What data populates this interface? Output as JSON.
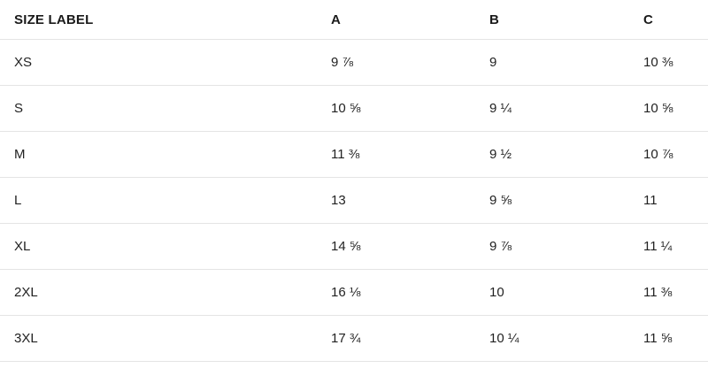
{
  "table": {
    "headers": [
      "SIZE LABEL",
      "A",
      "B",
      "C"
    ],
    "rows": [
      {
        "size": "XS",
        "a": "9 ⅞",
        "b": "9",
        "c": "10 ⅜"
      },
      {
        "size": "S",
        "a": "10 ⅝",
        "b": "9 ¼",
        "c": "10 ⅝"
      },
      {
        "size": "M",
        "a": "11 ⅜",
        "b": "9 ½",
        "c": "10 ⅞"
      },
      {
        "size": "L",
        "a": "13",
        "b": "9 ⅝",
        "c": "11"
      },
      {
        "size": "XL",
        "a": "14 ⅝",
        "b": "9 ⅞",
        "c": "11 ¼"
      },
      {
        "size": "2XL",
        "a": "16 ⅛",
        "b": "10",
        "c": "11 ⅜"
      },
      {
        "size": "3XL",
        "a": "17 ¾",
        "b": "10 ¼",
        "c": "11 ⅝"
      }
    ],
    "colors": {
      "text": "#222222",
      "header_text": "#1a1a1a",
      "divider": "#e4e4e4",
      "background": "#ffffff"
    }
  }
}
